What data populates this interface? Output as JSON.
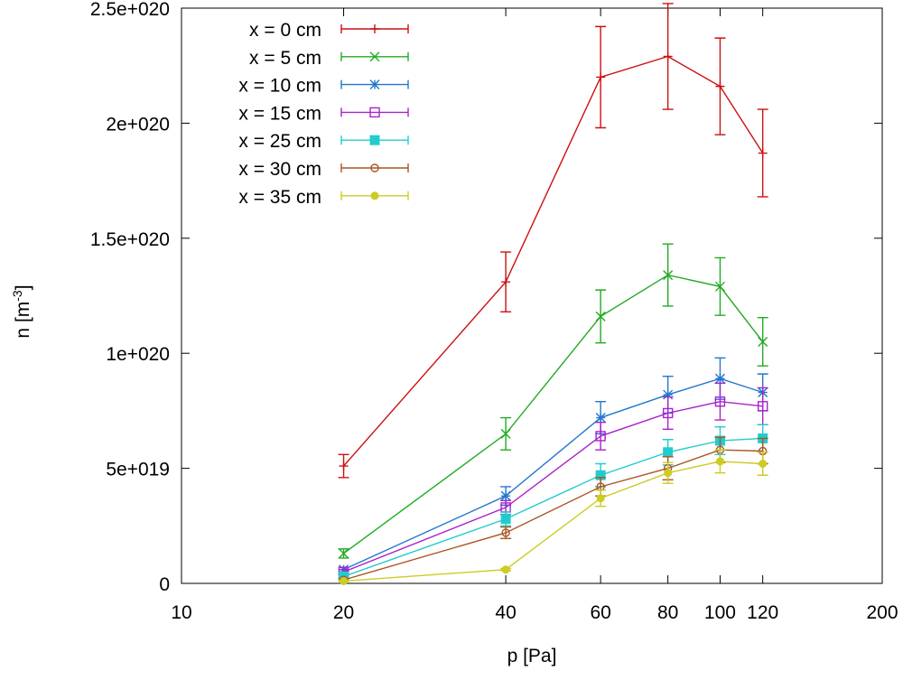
{
  "chart_data": {
    "type": "line",
    "title": "",
    "xlabel": "p [Pa]",
    "ylabel_base": "n [m",
    "ylabel_sup": "-3",
    "ylabel_close": "]",
    "x_scale": "log",
    "xlim": [
      10,
      200
    ],
    "ylim": [
      0,
      2.5e+20
    ],
    "grid": false,
    "legend_position": "top-left",
    "x_ticks": [
      {
        "value": 10,
        "label": "10"
      },
      {
        "value": 20,
        "label": "20"
      },
      {
        "value": 40,
        "label": "40"
      },
      {
        "value": 60,
        "label": "60"
      },
      {
        "value": 80,
        "label": "80"
      },
      {
        "value": 100,
        "label": "100"
      },
      {
        "value": 120,
        "label": "120"
      },
      {
        "value": 200,
        "label": "200"
      }
    ],
    "y_ticks": [
      {
        "value": 0,
        "label": "0"
      },
      {
        "value": 5e+19,
        "label": "5e+019"
      },
      {
        "value": 1e+20,
        "label": "1e+020"
      },
      {
        "value": 1.5e+20,
        "label": "1.5e+020"
      },
      {
        "value": 2e+20,
        "label": "2e+020"
      },
      {
        "value": 2.5e+20,
        "label": "2.5e+020"
      }
    ],
    "x": [
      20,
      40,
      60,
      80,
      100,
      120
    ],
    "series": [
      {
        "name": "x = 0 cm",
        "color": "#cc1111",
        "marker": "plus",
        "values": [
          5.1e+19,
          1.31e+20,
          2.2e+20,
          2.29e+20,
          2.16e+20,
          1.87e+20
        ],
        "errors": [
          5e+18,
          1.3e+19,
          2.2e+19,
          2.3e+19,
          2.1e+19,
          1.9e+19
        ]
      },
      {
        "name": "x = 5 cm",
        "color": "#22aa22",
        "marker": "cross",
        "values": [
          1.3e+19,
          6.5e+19,
          1.16e+20,
          1.34e+20,
          1.29e+20,
          1.05e+20
        ],
        "errors": [
          2e+18,
          7e+18,
          1.15e+19,
          1.35e+19,
          1.25e+19,
          1.05e+19
        ]
      },
      {
        "name": "x = 10 cm",
        "color": "#2277cc",
        "marker": "star",
        "values": [
          6e+18,
          3.8e+19,
          7.2e+19,
          8.2e+19,
          8.9e+19,
          8.3e+19
        ],
        "errors": [
          1e+18,
          4e+18,
          7e+18,
          8e+18,
          9e+18,
          8e+18
        ]
      },
      {
        "name": "x = 15 cm",
        "color": "#aa22cc",
        "marker": "square-open",
        "values": [
          5e+18,
          3.3e+19,
          6.4e+19,
          7.4e+19,
          7.9e+19,
          7.7e+19
        ],
        "errors": [
          1e+18,
          3e+18,
          6e+18,
          7e+18,
          8e+18,
          8e+18
        ]
      },
      {
        "name": "x = 25 cm",
        "color": "#22cccc",
        "marker": "square-filled",
        "values": [
          3e+18,
          2.8e+19,
          4.7e+19,
          5.7e+19,
          6.2e+19,
          6.3e+19
        ],
        "errors": [
          5e+17,
          3e+18,
          5e+18,
          5.5e+18,
          6e+18,
          6e+18
        ]
      },
      {
        "name": "x = 30 cm",
        "color": "#aa5522",
        "marker": "circle-open",
        "values": [
          1.5e+18,
          2.2e+19,
          4.2e+19,
          5e+19,
          5.8e+19,
          5.75e+19
        ],
        "errors": [
          5e+17,
          2.5e+18,
          4e+18,
          5e+18,
          5.5e+18,
          5.5e+18
        ]
      },
      {
        "name": "x = 35 cm",
        "color": "#cccc22",
        "marker": "circle-filled",
        "values": [
          1e+18,
          6e+18,
          3.7e+19,
          4.8e+19,
          5.3e+19,
          5.2e+19
        ],
        "errors": [
          2e+17,
          5e+17,
          3.5e+18,
          4.5e+18,
          5e+18,
          5e+18
        ]
      }
    ]
  }
}
